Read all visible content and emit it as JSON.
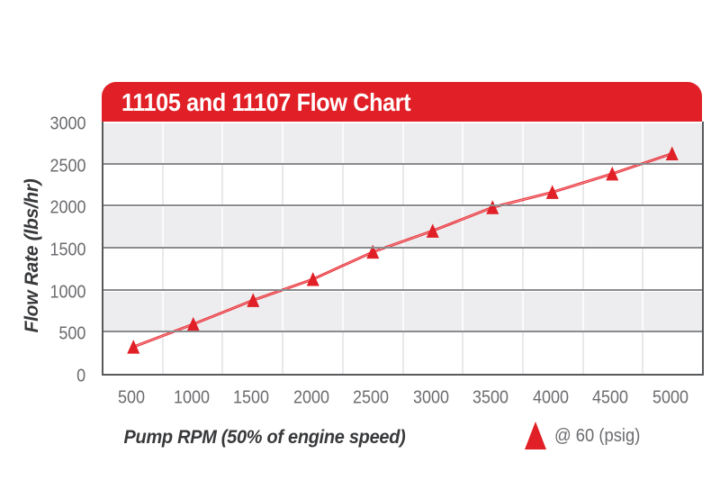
{
  "header": {
    "title": "11105 and 11107 Flow Chart"
  },
  "axes": {
    "y_label": "Flow Rate (lbs/hr)",
    "x_label": "Pump RPM (50% of engine speed)",
    "y_ticks": [
      3000,
      2500,
      2000,
      1500,
      1000,
      500,
      0
    ],
    "x_ticks": [
      "500",
      "1000",
      "1500",
      "2000",
      "2500",
      "3000",
      "3500",
      "4000",
      "4500",
      "5000"
    ]
  },
  "legend": {
    "label": "@ 60 (psig)",
    "marker_icon": "triangle-up-icon"
  },
  "colors": {
    "banner_red": "#E01F26",
    "marker_red": "#E01F26",
    "line_red": "#EA3940",
    "band_gray": "#EDEDEF",
    "grid_dark": "#8A8B8E",
    "axis_border": "#58595B",
    "tick_text": "#6B6C6F",
    "title_text": "#38393B"
  },
  "chart_data": {
    "type": "line",
    "title": "11105 and 11107 Flow Chart",
    "xlabel": "Pump RPM (50% of engine speed)",
    "ylabel": "Flow Rate (lbs/hr)",
    "x": [
      500,
      1000,
      1500,
      2000,
      2500,
      3000,
      3500,
      4000,
      4500,
      5000
    ],
    "series": [
      {
        "name": "@ 60 (psig)",
        "marker": "triangle-up",
        "values": [
          320,
          590,
          875,
          1125,
          1450,
          1700,
          1980,
          2160,
          2380,
          2620
        ]
      }
    ],
    "ylim": [
      0,
      3000
    ],
    "y_tick_step": 500,
    "x_axis_type": "category",
    "grid": "horizontal lines at 500 intervals; vertical light lines at category boundaries; alternating gray/white horizontal bands",
    "legend_position": "bottom-right"
  }
}
